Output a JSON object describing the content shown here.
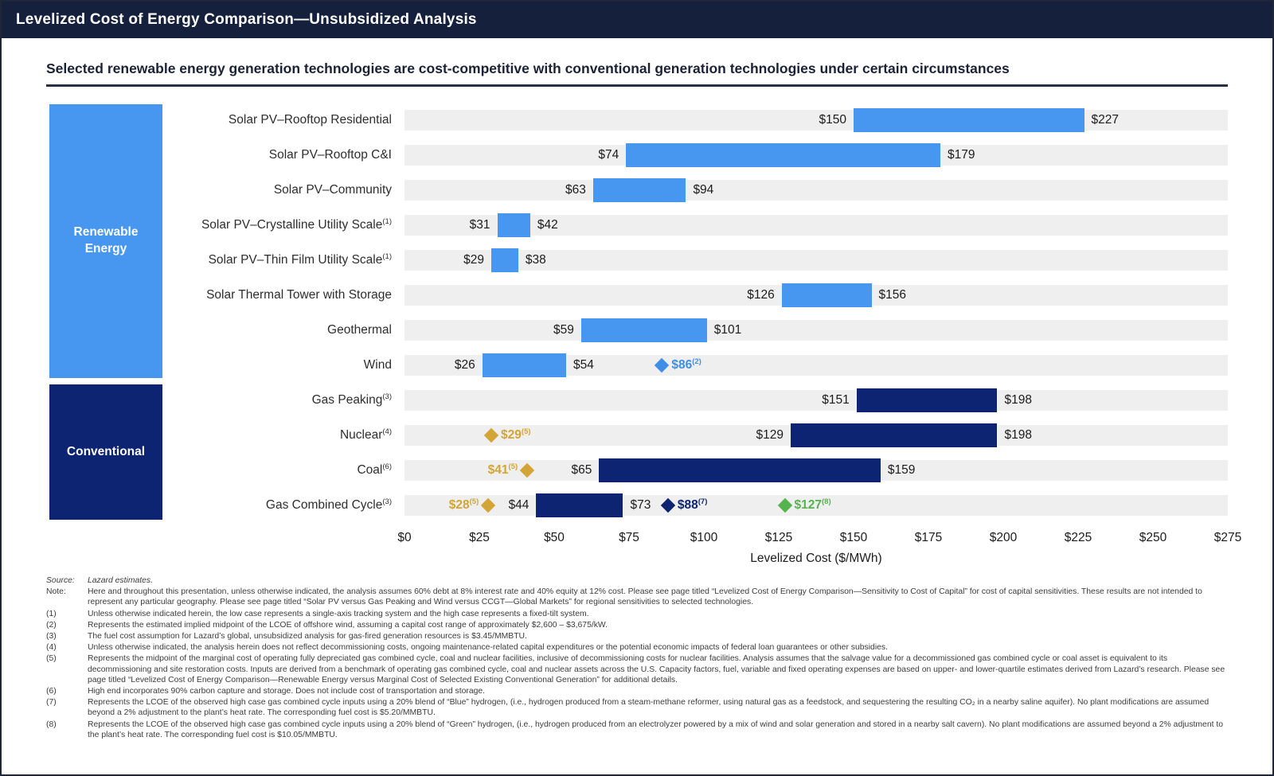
{
  "header": {
    "title": "Levelized Cost of Energy Comparison—Unsubsidized Analysis"
  },
  "subtitle": "Selected renewable energy generation technologies are cost-competitive with conventional generation technologies under certain circumstances",
  "colors": {
    "renewable": "#4796F0",
    "conventional": "#0D2472",
    "gold": "#D3A436",
    "green": "#55B44E",
    "marker_blue": "#3E8EE8",
    "track": "#EFEFEF",
    "header_bg": "#15203C"
  },
  "categories": {
    "renewable": {
      "label": "Renewable Energy",
      "color": "#4796F0"
    },
    "conventional": {
      "label": "Conventional",
      "color": "#0D2472"
    }
  },
  "chart_data": {
    "type": "bar",
    "subtype": "horizontal-range-bar",
    "title": "Selected renewable energy generation technologies are cost-competitive with conventional generation technologies under certain circumstances",
    "xlabel": "Levelized Cost ($/MWh)",
    "xlim": [
      0,
      275
    ],
    "x_ticks": [
      0,
      25,
      50,
      75,
      100,
      125,
      150,
      175,
      200,
      225,
      250,
      275
    ],
    "x_tick_labels": [
      "$0",
      "$25",
      "$50",
      "$75",
      "$100",
      "$125",
      "$150",
      "$175",
      "$200",
      "$225",
      "$250",
      "$275"
    ],
    "grid": false,
    "rows": [
      {
        "label": "Solar PV–Rooftop Residential",
        "group": "renewable",
        "low": 150,
        "high": 227,
        "low_label": "$150",
        "high_label": "$227"
      },
      {
        "label": "Solar PV–Rooftop C&I",
        "group": "renewable",
        "low": 74,
        "high": 179,
        "low_label": "$74",
        "high_label": "$179"
      },
      {
        "label": "Solar PV–Community",
        "group": "renewable",
        "low": 63,
        "high": 94,
        "low_label": "$63",
        "high_label": "$94"
      },
      {
        "label": "Solar PV–Crystalline Utility Scale",
        "sup": "(1)",
        "group": "renewable",
        "low": 31,
        "high": 42,
        "low_label": "$31",
        "high_label": "$42"
      },
      {
        "label": "Solar PV–Thin Film Utility Scale",
        "sup": "(1)",
        "group": "renewable",
        "low": 29,
        "high": 38,
        "low_label": "$29",
        "high_label": "$38"
      },
      {
        "label": "Solar Thermal Tower with Storage",
        "group": "renewable",
        "low": 126,
        "high": 156,
        "low_label": "$126",
        "high_label": "$156"
      },
      {
        "label": "Geothermal",
        "group": "renewable",
        "low": 59,
        "high": 101,
        "low_label": "$59",
        "high_label": "$101"
      },
      {
        "label": "Wind",
        "group": "renewable",
        "low": 26,
        "high": 54,
        "low_label": "$26",
        "high_label": "$54",
        "markers": [
          {
            "value": 86,
            "label": "$86",
            "sup": "(2)",
            "color": "marker_blue",
            "side": "right"
          }
        ]
      },
      {
        "label": "Gas Peaking",
        "sup": "(3)",
        "group": "conventional",
        "low": 151,
        "high": 198,
        "low_label": "$151",
        "high_label": "$198"
      },
      {
        "label": "Nuclear",
        "sup": "(4)",
        "group": "conventional",
        "low": 129,
        "high": 198,
        "low_label": "$129",
        "high_label": "$198",
        "markers": [
          {
            "value": 29,
            "label": "$29",
            "sup": "(5)",
            "color": "gold",
            "side": "right"
          }
        ]
      },
      {
        "label": "Coal",
        "sup": "(6)",
        "group": "conventional",
        "low": 65,
        "high": 159,
        "low_label": "$65",
        "high_label": "$159",
        "markers": [
          {
            "value": 41,
            "label": "$41",
            "sup": "(5)",
            "color": "gold",
            "side": "left"
          }
        ]
      },
      {
        "label": "Gas Combined Cycle",
        "sup": "(3)",
        "group": "conventional",
        "low": 44,
        "high": 73,
        "low_label": "$44",
        "high_label": "$73",
        "markers": [
          {
            "value": 28,
            "label": "$28",
            "sup": "(5)",
            "color": "gold",
            "side": "left"
          },
          {
            "value": 88,
            "label": "$88",
            "sup": "(7)",
            "color": "conventional",
            "side": "right"
          },
          {
            "value": 127,
            "label": "$127",
            "sup": "(8)",
            "color": "green",
            "side": "right"
          }
        ]
      }
    ]
  },
  "footnotes": [
    {
      "label": "Source:",
      "italic": true,
      "text": "Lazard estimates."
    },
    {
      "label": "Note:",
      "text": "Here and throughout this presentation, unless otherwise indicated, the analysis assumes 60% debt at 8% interest rate and 40% equity at 12% cost. Please see page titled “Levelized Cost of Energy Comparison—Sensitivity to Cost of Capital” for cost of capital sensitivities. These results are not intended to represent any particular geography. Please see page titled “Solar PV versus Gas Peaking and Wind versus CCGT—Global Markets” for regional sensitivities to selected technologies."
    },
    {
      "label": "(1)",
      "text": "Unless otherwise indicated herein, the low case represents a single-axis tracking system and the high case represents a fixed-tilt system."
    },
    {
      "label": "(2)",
      "text": "Represents the estimated implied midpoint of the LCOE of offshore wind, assuming a capital cost range of approximately $2,600 – $3,675/kW."
    },
    {
      "label": "(3)",
      "text": "The fuel cost assumption for Lazard’s global, unsubsidized analysis for gas-fired generation resources is $3.45/MMBTU."
    },
    {
      "label": "(4)",
      "text": "Unless otherwise indicated, the analysis herein does not reflect decommissioning costs, ongoing maintenance-related capital expenditures or the potential economic impacts of federal loan guarantees or other subsidies."
    },
    {
      "label": "(5)",
      "text": "Represents the midpoint of the marginal cost of operating fully depreciated gas combined cycle, coal and nuclear facilities, inclusive of decommissioning costs for nuclear facilities. Analysis assumes that the salvage value for a decommissioned gas combined cycle or coal asset is equivalent to its decommissioning and site restoration costs. Inputs are derived from a benchmark of operating gas combined cycle, coal and nuclear assets across the U.S. Capacity factors, fuel, variable and fixed operating expenses are based on upper- and lower-quartile estimates derived from Lazard’s research. Please see page titled “Levelized Cost of Energy Comparison—Renewable Energy versus Marginal Cost of Selected Existing Conventional Generation” for additional details."
    },
    {
      "label": "(6)",
      "text": "High end incorporates 90% carbon capture and storage. Does not include cost of transportation and storage."
    },
    {
      "label": "(7)",
      "text": "Represents the LCOE of the observed high case gas combined cycle inputs using a 20% blend of “Blue” hydrogen, (i.e., hydrogen produced from a steam-methane reformer, using natural gas as a feedstock, and sequestering the resulting CO₂ in a nearby saline aquifer). No plant modifications are assumed beyond a 2% adjustment to the plant’s heat rate. The corresponding fuel cost is $5.20/MMBTU."
    },
    {
      "label": "(8)",
      "text": "Represents the LCOE of the observed high case gas combined cycle inputs using a 20% blend of “Green” hydrogen, (i.e., hydrogen produced from an electrolyzer powered by a mix of wind and solar generation and stored in a nearby salt cavern). No plant modifications are assumed beyond a 2% adjustment to the plant’s heat rate. The corresponding fuel cost is $10.05/MMBTU."
    }
  ]
}
